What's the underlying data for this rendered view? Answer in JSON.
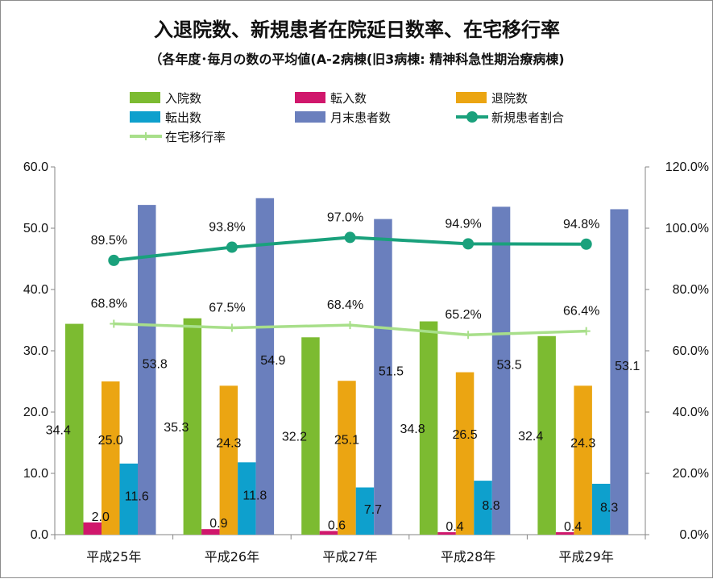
{
  "chart_data": {
    "type": "bar",
    "title": "入退院数、新規患者在院延日数率、在宅移行率",
    "subtitle": "（各年度･毎月の数の平均値(A-2病棟(旧3病棟: 精神科急性期治療病棟)",
    "categories": [
      "平成25年",
      "平成26年",
      "平成27年",
      "平成28年",
      "平成29年"
    ],
    "bar_series": [
      {
        "name": "入院数",
        "color": "#7cbb31",
        "values": [
          34.4,
          35.3,
          32.2,
          34.8,
          32.4
        ],
        "labels": [
          "34.4",
          "35.3",
          "32.2",
          "34.8",
          "32.4"
        ]
      },
      {
        "name": "転入数",
        "color": "#d0176c",
        "values": [
          2.0,
          0.9,
          0.6,
          0.4,
          0.4
        ],
        "labels": [
          "2.0",
          "0.9",
          "0.6",
          "0.4",
          "0.4"
        ]
      },
      {
        "name": "退院数",
        "color": "#eba512",
        "values": [
          25.0,
          24.3,
          25.1,
          26.5,
          24.3
        ],
        "labels": [
          "25.0",
          "24.3",
          "25.1",
          "26.5",
          "24.3"
        ]
      },
      {
        "name": "転出数",
        "color": "#0ea0cd",
        "values": [
          11.6,
          11.8,
          7.7,
          8.8,
          8.3
        ],
        "labels": [
          "11.6",
          "11.8",
          "7.7",
          "8.8",
          "8.3"
        ]
      },
      {
        "name": "月末患者数",
        "color": "#6a7fbd",
        "values": [
          53.8,
          54.9,
          51.5,
          53.5,
          53.1
        ],
        "labels": [
          "53.8",
          "54.9",
          "51.5",
          "53.5",
          "53.1"
        ]
      }
    ],
    "line_series": [
      {
        "name": "新規患者割合",
        "color": "#1aa17c",
        "axis": "right",
        "values": [
          89.5,
          93.8,
          97.0,
          94.9,
          94.8
        ],
        "labels": [
          "89.5%",
          "93.8%",
          "97.0%",
          "94.9%",
          "94.8%"
        ]
      },
      {
        "name": "在宅移行率",
        "color": "#a8df8a",
        "axis": "right",
        "values": [
          68.8,
          67.5,
          68.4,
          65.2,
          66.4
        ],
        "labels": [
          "68.8%",
          "67.5%",
          "68.4%",
          "65.2%",
          "66.4%"
        ]
      }
    ],
    "y_left": {
      "min": 0,
      "max": 60,
      "step": 10,
      "tick_labels": [
        "0.0",
        "10.0",
        "20.0",
        "30.0",
        "40.0",
        "50.0",
        "60.0"
      ]
    },
    "y_right": {
      "min": 0,
      "max": 120,
      "step": 20,
      "tick_labels": [
        "0.0%",
        "20.0%",
        "40.0%",
        "60.0%",
        "80.0%",
        "100.0%",
        "120.0%"
      ]
    },
    "grid": false,
    "legend_position": "top"
  }
}
